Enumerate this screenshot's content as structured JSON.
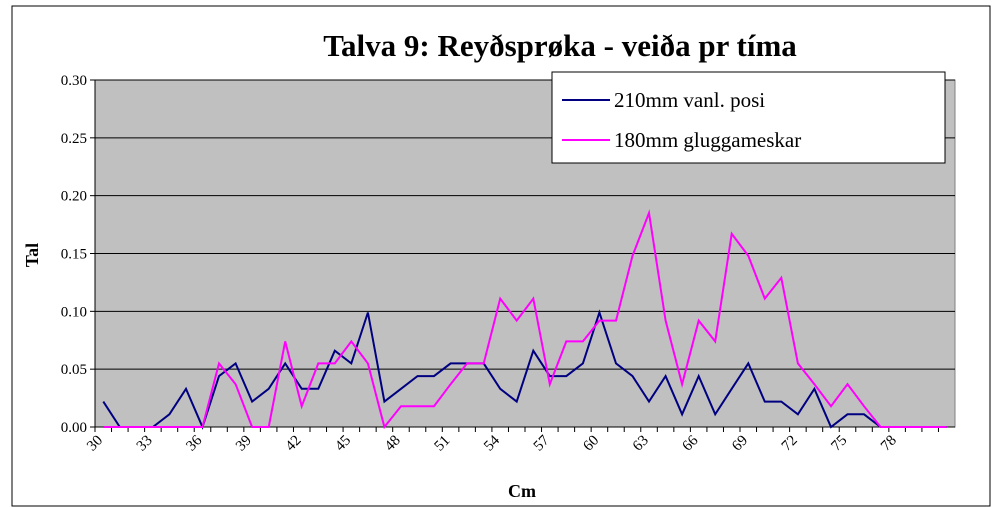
{
  "chart_data": {
    "type": "line",
    "title": "Talva 9: Reyðsprøka - veiða pr tíma",
    "x_label": "Cm",
    "y_label": "Tal",
    "categories": [
      "30",
      null,
      null,
      "33",
      null,
      null,
      "36",
      null,
      null,
      "39",
      null,
      null,
      "42",
      null,
      null,
      "45",
      null,
      null,
      "48",
      null,
      null,
      "51",
      null,
      null,
      "54",
      null,
      null,
      "57",
      null,
      null,
      "60",
      null,
      null,
      "63",
      null,
      null,
      "66",
      null,
      null,
      "69",
      null,
      null,
      "72",
      null,
      null,
      "75",
      null,
      null,
      "78",
      null,
      null,
      null
    ],
    "series": [
      {
        "name": "210mm vanl. posi",
        "color": "#000080",
        "values": [
          0.022,
          0,
          0,
          0,
          0.011,
          0.033,
          0,
          0.044,
          0.055,
          0.022,
          0.033,
          0.055,
          0.033,
          0.033,
          0.066,
          0.055,
          0.099,
          0.022,
          0.033,
          0.044,
          0.044,
          0.055,
          0.055,
          0.055,
          0.033,
          0.022,
          0.066,
          0.044,
          0.044,
          0.055,
          0.099,
          0.055,
          0.044,
          0.022,
          0.044,
          0.011,
          0.044,
          0.011,
          0.033,
          0.055,
          0.022,
          0.022,
          0.011,
          0.033,
          0,
          0.011,
          0.011,
          0,
          0,
          0,
          0,
          0
        ]
      },
      {
        "name": "180mm gluggameskar",
        "color": "#ff00ff",
        "values": [
          0,
          0,
          0,
          0,
          0,
          0,
          0,
          0.055,
          0.037,
          0,
          0,
          0.074,
          0.018,
          0.055,
          0.055,
          0.074,
          0.055,
          0,
          0.018,
          0.018,
          0.018,
          0.037,
          0.055,
          0.055,
          0.111,
          0.092,
          0.111,
          0.037,
          0.074,
          0.074,
          0.092,
          0.092,
          0.148,
          0.185,
          0.092,
          0.037,
          0.092,
          0.074,
          0.167,
          0.148,
          0.111,
          0.129,
          0.055,
          0.037,
          0.018,
          0.037,
          0.018,
          0,
          0,
          0,
          0,
          0
        ]
      }
    ],
    "ylim": [
      0,
      0.3
    ],
    "yticks": [
      {
        "value": 0,
        "label": "0.00"
      },
      {
        "value": 0.05,
        "label": "0.05"
      },
      {
        "value": 0.1,
        "label": "0.10"
      },
      {
        "value": 0.15,
        "label": "0.15"
      },
      {
        "value": 0.2,
        "label": "0.20"
      },
      {
        "value": 0.25,
        "label": "0.25"
      },
      {
        "value": 0.3,
        "label": "0.30"
      }
    ],
    "grid": true,
    "legend": "top-right",
    "plot_background": "#c0c0c0"
  }
}
